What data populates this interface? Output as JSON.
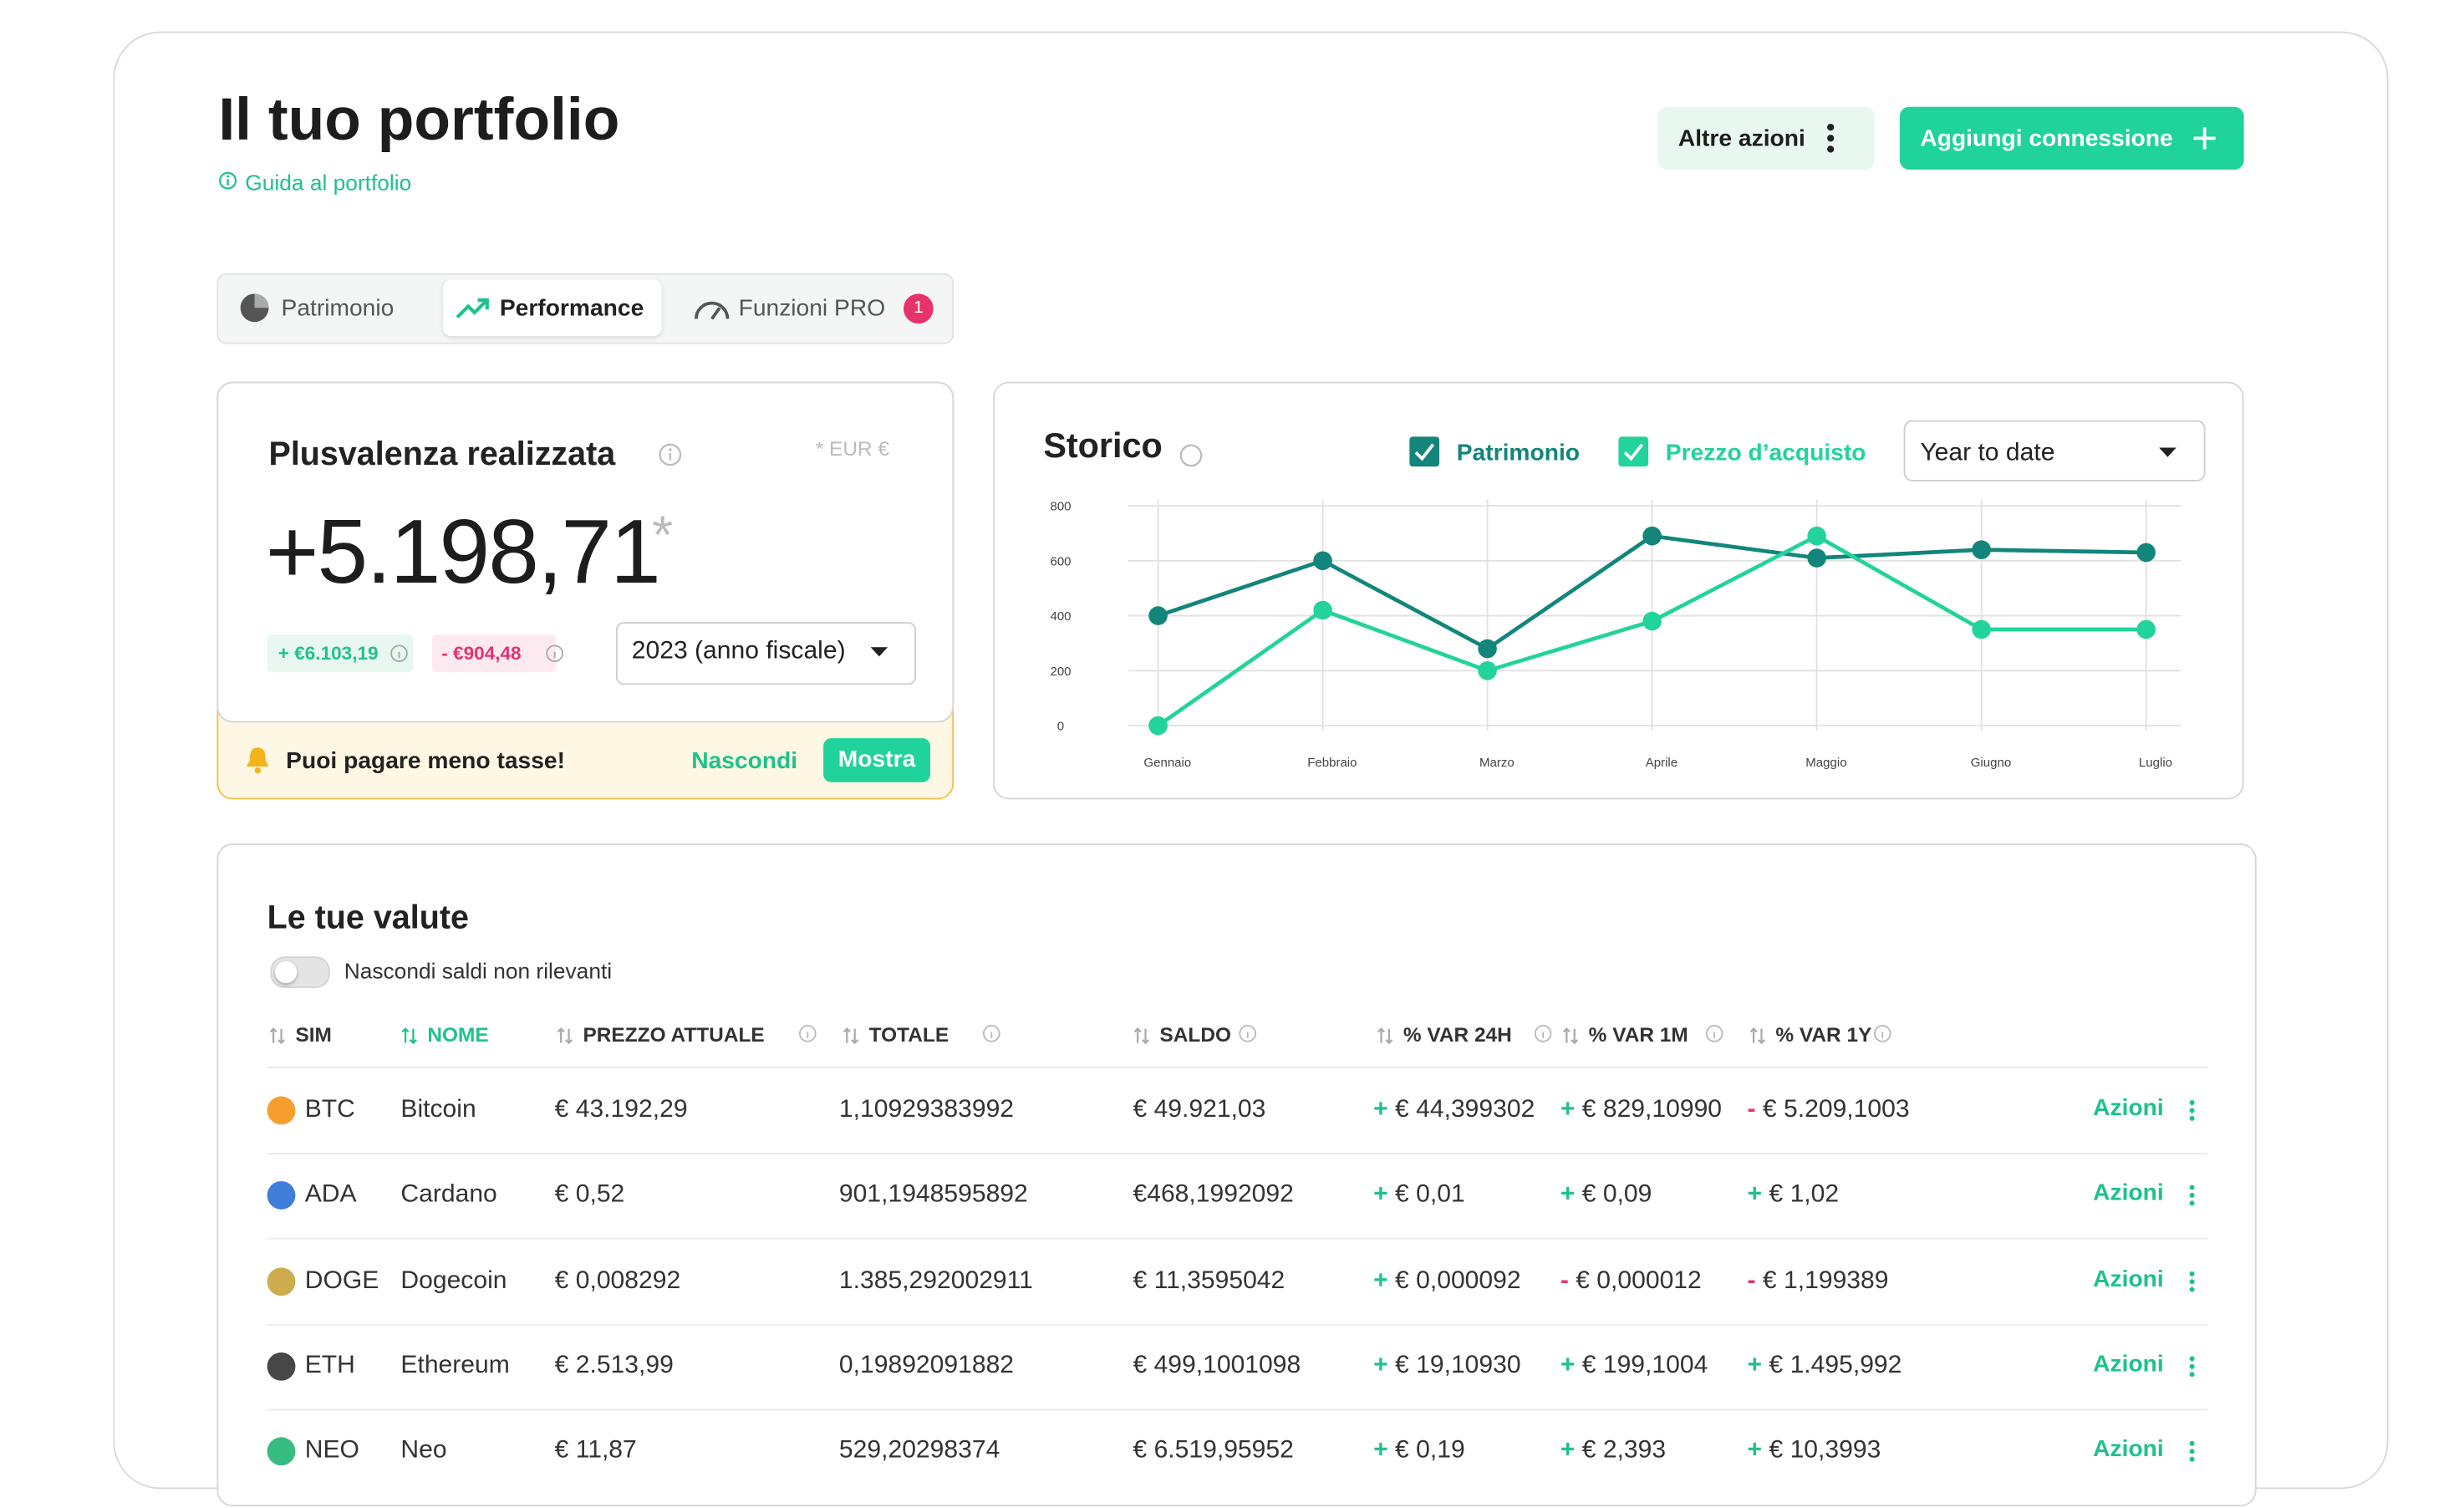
{
  "header": {
    "title": "Il tuo portfolio",
    "guide_link": "Guida al portfolio",
    "more_actions": "Altre azioni",
    "add_connection": "Aggiungi connessione"
  },
  "tabs": [
    {
      "label": "Patrimonio"
    },
    {
      "label": "Performance"
    },
    {
      "label": "Funzioni PRO",
      "badge": "1"
    }
  ],
  "realized_gain": {
    "title": "Plusvalenza realizzata",
    "currency_note": "* EUR €",
    "value": "+5.198,71",
    "asterisk": "*",
    "gains": "+ €6.103,19",
    "losses": "- €904,48",
    "period": "2023 (anno fiscale)",
    "banner": {
      "text": "Puoi pagare meno tasse!",
      "hide": "Nascondi",
      "show": "Mostra"
    }
  },
  "chart_data": {
    "type": "line",
    "title": "Storico",
    "range_selector": "Year to date",
    "categories": [
      "Gennaio",
      "Febbraio",
      "Marzo",
      "Aprile",
      "Maggio",
      "Giugno",
      "Luglio"
    ],
    "series": [
      {
        "name": "Patrimonio",
        "color": "#13857a",
        "values": [
          400,
          600,
          280,
          690,
          610,
          640,
          630
        ]
      },
      {
        "name": "Prezzo d’acquisto",
        "color": "#22d39b",
        "values": [
          0,
          420,
          200,
          380,
          690,
          350,
          350
        ]
      }
    ],
    "ylim": [
      0,
      800
    ],
    "yticks": [
      0,
      200,
      400,
      600,
      800
    ],
    "grid": true
  },
  "currencies": {
    "title": "Le tue valute",
    "toggle_label": "Nascondi saldi non rilevanti",
    "action_label": "Azioni",
    "columns": [
      "SIM",
      "NOME",
      "PREZZO ATTUALE",
      "TOTALE",
      "SALDO",
      "% VAR 24H",
      "% VAR 1M",
      "% VAR 1Y"
    ],
    "rows": [
      [
        "BTC",
        "Bitcoin",
        "€ 43.192,29",
        "1,10929383992",
        "€ 49.921,03",
        "+ € 44,399302",
        "+ € 829,10990",
        "- € 5.209,1003"
      ],
      [
        "ADA",
        "Cardano",
        "€ 0,52",
        "901,1948595892",
        "€468,1992092",
        "+ € 0,01",
        "+ € 0,09",
        "+ € 1,02"
      ],
      [
        "DOGE",
        "Dogecoin",
        "€ 0,008292",
        "1.385,292002911",
        "€ 11,3595042",
        "+ € 0,000092",
        "- € 0,000012",
        "- € 1,199389"
      ],
      [
        "ETH",
        "Ethereum",
        "€ 2.513,99",
        "0,19892091882",
        "€ 499,1001098",
        "+ € 19,10930",
        "+ € 199,1004",
        "+ € 1.495,992"
      ],
      [
        "NEO",
        "Neo",
        "€ 11,87",
        "529,20298374",
        "€ 6.519,95952",
        "+ € 0,19",
        "+ € 2,393",
        "+ € 10,3993"
      ]
    ]
  }
}
